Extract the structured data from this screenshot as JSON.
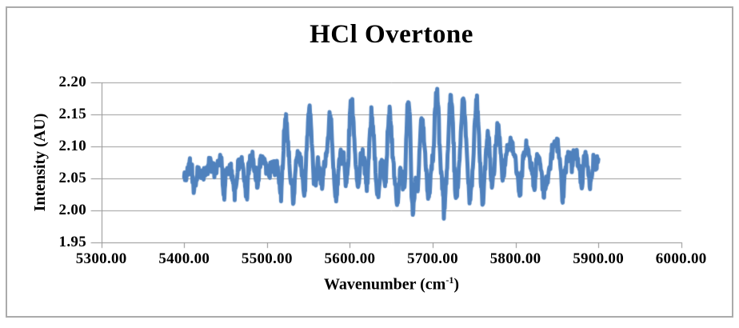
{
  "chart_data": {
    "type": "line",
    "title": "HCl Overtone",
    "xlabel": "Wavenumber (cm⁻¹)",
    "xlabel_parts": {
      "main": "Wavenumber (cm",
      "sup": "-1",
      "close": ")"
    },
    "ylabel": "Intensity (AU)",
    "xlim": [
      5300,
      6000
    ],
    "ylim": [
      1.95,
      2.2
    ],
    "grid": "horizontal-only",
    "legend": "none",
    "x_ticks": [
      {
        "value": 5300,
        "label": "5300.00"
      },
      {
        "value": 5400,
        "label": "5400.00"
      },
      {
        "value": 5500,
        "label": "5500.00"
      },
      {
        "value": 5600,
        "label": "5600.00"
      },
      {
        "value": 5700,
        "label": "5700.00"
      },
      {
        "value": 5800,
        "label": "5800.00"
      },
      {
        "value": 5900,
        "label": "5900.00"
      },
      {
        "value": 6000,
        "label": "6000.00"
      }
    ],
    "y_ticks": [
      {
        "value": 2.2,
        "label": "2.20"
      },
      {
        "value": 2.15,
        "label": "2.15"
      },
      {
        "value": 2.1,
        "label": "2.10"
      },
      {
        "value": 2.05,
        "label": "2.05"
      },
      {
        "value": 2.0,
        "label": "2.00"
      },
      {
        "value": 1.95,
        "label": "1.95"
      }
    ],
    "colors": {
      "line": "#4F81BD",
      "grid": "#9b9b9b",
      "axis": "#8f8f8f",
      "text": "#000000",
      "border": "#ababab"
    },
    "data_x_range": [
      5400,
      5900
    ],
    "sample_step": 0.5,
    "baseline": 2.046,
    "baseline_hump": 0.007,
    "noise": {
      "seed": 11,
      "amplitude": 0.016
    },
    "peaks": [
      [
        5407,
        2.07
      ],
      [
        5419,
        2.063
      ],
      [
        5431,
        2.066
      ],
      [
        5443,
        2.07
      ],
      [
        5455,
        2.072
      ],
      [
        5468,
        2.076
      ],
      [
        5481,
        2.07
      ],
      [
        5494,
        2.088
      ],
      [
        5508,
        2.071
      ],
      [
        5523,
        2.13
      ],
      [
        5538,
        2.081
      ],
      [
        5551,
        2.157
      ],
      [
        5564,
        2.072
      ],
      [
        5576,
        2.14
      ],
      [
        5590,
        2.08
      ],
      [
        5602,
        2.166
      ],
      [
        5615,
        2.075
      ],
      [
        5626,
        2.142
      ],
      [
        5638,
        2.072
      ],
      [
        5648,
        2.134
      ],
      [
        5671,
        2.17
      ],
      [
        5687,
        2.136
      ],
      [
        5705,
        2.178
      ],
      [
        5722,
        2.172
      ],
      [
        5737,
        2.158
      ],
      [
        5753,
        2.166
      ],
      [
        5767,
        2.123
      ],
      [
        5779,
        2.118
      ],
      [
        5790,
        2.089
      ],
      [
        5798,
        2.086
      ],
      [
        5813,
        2.089
      ],
      [
        5826,
        2.077
      ],
      [
        5845,
        2.09
      ],
      [
        5852,
        2.086
      ],
      [
        5865,
        2.075
      ],
      [
        5872,
        2.085
      ],
      [
        5884,
        2.084
      ],
      [
        5895,
        2.078
      ]
    ],
    "dips": [
      [
        5412,
        2.022
      ],
      [
        5448,
        2.008
      ],
      [
        5462,
        2.016
      ],
      [
        5475,
        2.006
      ],
      [
        5489,
        2.018
      ],
      [
        5517,
        2.018
      ],
      [
        5532,
        2.012
      ],
      [
        5545,
        2.016
      ],
      [
        5558,
        2.02
      ],
      [
        5566,
        2.008
      ],
      [
        5583,
        2.016
      ],
      [
        5596,
        2.02
      ],
      [
        5610,
        2.014
      ],
      [
        5621,
        2.02
      ],
      [
        5634,
        2.002
      ],
      [
        5643,
        2.018
      ],
      [
        5657,
        2.014
      ],
      [
        5666,
        2.02
      ],
      [
        5675.5,
        1.978
      ],
      [
        5682,
        2.02
      ],
      [
        5695,
        2.018
      ],
      [
        5714,
        2.016
      ],
      [
        5728,
        2.01
      ],
      [
        5745,
        2.018
      ],
      [
        5760,
        2.012
      ],
      [
        5771,
        2.016
      ],
      [
        5785,
        2.02
      ],
      [
        5805,
        2.016
      ],
      [
        5823,
        2.008
      ],
      [
        5834,
        2.018
      ],
      [
        5857,
        1.999
      ],
      [
        5868,
        2.016
      ],
      [
        5880,
        2.02
      ],
      [
        5890,
        2.012
      ]
    ]
  }
}
